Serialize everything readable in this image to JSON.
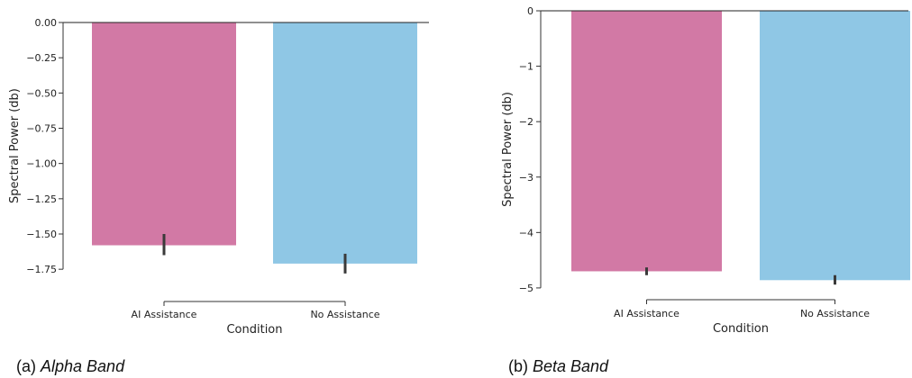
{
  "chart_data": [
    {
      "type": "bar",
      "caption_prefix": "(a)",
      "caption_title": "Alpha Band",
      "xlabel": "Condition",
      "ylabel": "Spectral Power (db)",
      "categories": [
        "AI Assistance",
        "No Assistance"
      ],
      "values": [
        -1.58,
        -1.71
      ],
      "error_low": [
        -1.65,
        -1.78
      ],
      "error_high": [
        -1.5,
        -1.64
      ],
      "ylim": [
        -1.8,
        0.0
      ],
      "yticks": [
        0.0,
        -0.25,
        -0.5,
        -0.75,
        -1.0,
        -1.25,
        -1.5,
        -1.75
      ],
      "ytick_labels": [
        "0.00",
        "−0.25",
        "−0.50",
        "−0.75",
        "−1.00",
        "−1.25",
        "−1.50",
        "−1.75"
      ],
      "colors": [
        "#d279a5",
        "#8fc7e5"
      ],
      "error_color": "#3a3a3a",
      "grid": false
    },
    {
      "type": "bar",
      "caption_prefix": "(b)",
      "caption_title": "Beta Band",
      "xlabel": "Condition",
      "ylabel": "Spectral Power (db)",
      "categories": [
        "AI Assistance",
        "No Assistance"
      ],
      "values": [
        -4.7,
        -4.86
      ],
      "error_low": [
        -4.77,
        -4.94
      ],
      "error_high": [
        -4.63,
        -4.77
      ],
      "ylim": [
        -5.05,
        0.0
      ],
      "yticks": [
        0,
        -1,
        -2,
        -3,
        -4,
        -5
      ],
      "ytick_labels": [
        "0",
        "−1",
        "−2",
        "−3",
        "−4",
        "−5"
      ],
      "colors": [
        "#d279a5",
        "#8fc7e5"
      ],
      "error_color": "#3a3a3a",
      "grid": false
    }
  ]
}
